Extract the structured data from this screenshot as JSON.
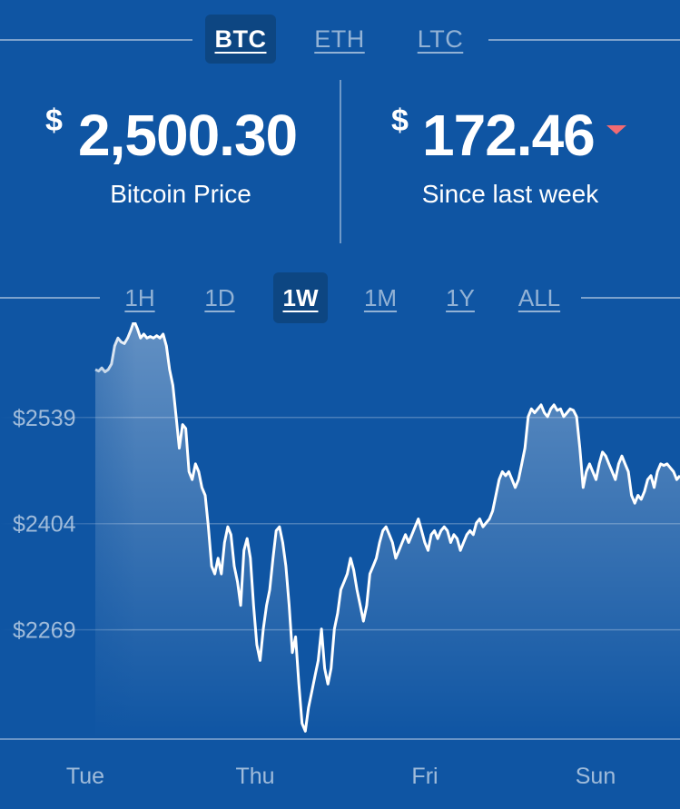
{
  "currency_tabs": [
    {
      "label": "BTC",
      "active": true
    },
    {
      "label": "ETH",
      "active": false
    },
    {
      "label": "LTC",
      "active": false
    }
  ],
  "price": {
    "currency_symbol": "$",
    "value": "2,500.30",
    "label": "Bitcoin Price"
  },
  "change": {
    "currency_symbol": "$",
    "value": "172.46",
    "label": "Since last week",
    "direction": "down",
    "direction_color": "#f06b73"
  },
  "range_tabs": [
    {
      "label": "1H",
      "active": false
    },
    {
      "label": "1D",
      "active": false
    },
    {
      "label": "1W",
      "active": true
    },
    {
      "label": "1M",
      "active": false
    },
    {
      "label": "1Y",
      "active": false
    },
    {
      "label": "ALL",
      "active": false
    }
  ],
  "colors": {
    "background": "#0f55a3",
    "active_tab": "#0d4682",
    "line": "#ffffff"
  },
  "chart_data": {
    "type": "area",
    "y_ticks": [
      "$2539",
      "$2404",
      "$2269"
    ],
    "y_tick_values": [
      2539,
      2404,
      2269
    ],
    "x_ticks": [
      "Tue",
      "Thu",
      "Fri",
      "Sun"
    ],
    "ylim": [
      2130,
      2660
    ],
    "grid": true,
    "series": [
      {
        "values": [
          2600,
          2598,
          2602,
          2597,
          2600,
          2607,
          2630,
          2640,
          2635,
          2633,
          2640,
          2650,
          2662,
          2652,
          2640,
          2645,
          2640,
          2642,
          2640,
          2643,
          2640,
          2645,
          2630,
          2600,
          2580,
          2540,
          2500,
          2530,
          2525,
          2470,
          2460,
          2480,
          2470,
          2450,
          2440,
          2400,
          2350,
          2340,
          2360,
          2340,
          2380,
          2400,
          2390,
          2350,
          2330,
          2300,
          2370,
          2385,
          2360,
          2300,
          2250,
          2230,
          2270,
          2300,
          2320,
          2360,
          2395,
          2400,
          2380,
          2350,
          2300,
          2240,
          2260,
          2200,
          2150,
          2140,
          2170,
          2190,
          2210,
          2230,
          2270,
          2220,
          2200,
          2220,
          2270,
          2290,
          2320,
          2330,
          2340,
          2360,
          2345,
          2320,
          2300,
          2280,
          2300,
          2340,
          2350,
          2360,
          2380,
          2395,
          2400,
          2390,
          2380,
          2360,
          2370,
          2380,
          2390,
          2380,
          2390,
          2400,
          2410,
          2395,
          2380,
          2370,
          2390,
          2395,
          2385,
          2395,
          2400,
          2395,
          2380,
          2390,
          2385,
          2370,
          2380,
          2390,
          2395,
          2390,
          2405,
          2410,
          2400,
          2405,
          2410,
          2420,
          2440,
          2460,
          2470,
          2465,
          2470,
          2460,
          2450,
          2460,
          2480,
          2500,
          2540,
          2550,
          2545,
          2550,
          2555,
          2545,
          2540,
          2550,
          2555,
          2548,
          2550,
          2540,
          2545,
          2550,
          2548,
          2540,
          2500,
          2450,
          2470,
          2480,
          2470,
          2460,
          2480,
          2495,
          2490,
          2480,
          2470,
          2460,
          2480,
          2490,
          2480,
          2470,
          2440,
          2430,
          2440,
          2435,
          2445,
          2460,
          2465,
          2450,
          2470,
          2480,
          2478,
          2480,
          2475,
          2470,
          2460,
          2465
        ]
      }
    ]
  }
}
